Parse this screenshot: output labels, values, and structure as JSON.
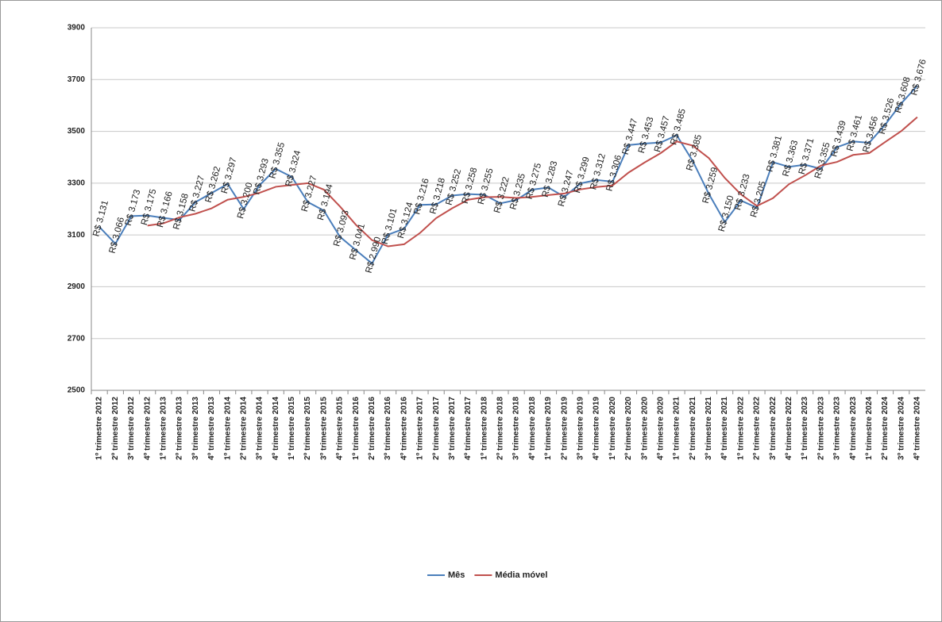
{
  "chart_data": {
    "type": "line",
    "categories": [
      "1º trimestre 2012",
      "2º trimestre 2012",
      "3º trimestre 2012",
      "4º trimestre 2012",
      "1º trimestre 2013",
      "2º trimestre 2013",
      "3º trimestre 2013",
      "4º trimestre 2013",
      "1º trimestre 2014",
      "2º trimestre 2014",
      "3º trimestre 2014",
      "4º trimestre 2014",
      "1º trimestre 2015",
      "2º trimestre 2015",
      "3º trimestre 2015",
      "4º trimestre 2015",
      "1º trimestre 2016",
      "2º trimestre 2016",
      "3º trimestre 2016",
      "4º trimestre 2016",
      "1º trimestre 2017",
      "2º trimestre 2017",
      "3º trimestre 2017",
      "4º trimestre 2017",
      "1º trimestre 2018",
      "2º trimestre 2018",
      "3º trimestre 2018",
      "4º trimestre 2018",
      "1º trimestre 2019",
      "2º trimestre 2019",
      "3º trimestre 2019",
      "4º trimestre 2019",
      "1º trimestre 2020",
      "2º trimestre 2020",
      "3º trimestre 2020",
      "4º trimestre 2020",
      "1º trimestre 2021",
      "2º trimestre 2021",
      "3º trimestre 2021",
      "4º trimestre 2021",
      "1º trimestre 2022",
      "2º trimestre 2022",
      "3º trimestre 2022",
      "4º trimestre 2022",
      "1º trimestre 2023",
      "2º trimestre 2023",
      "3º trimestre 2023",
      "4º trimestre 2023",
      "1º trimestre 2024",
      "2º trimestre 2024",
      "3º trimestre 2024",
      "4º trimestre 2024"
    ],
    "series": [
      {
        "name": "Mês",
        "color": "#4a7ebb",
        "values": [
          3131,
          3066,
          3173,
          3175,
          3166,
          3158,
          3227,
          3262,
          3297,
          3200,
          3293,
          3355,
          3324,
          3227,
          3194,
          3093,
          3041,
          2990,
          3101,
          3124,
          3216,
          3218,
          3252,
          3258,
          3255,
          3222,
          3235,
          3275,
          3283,
          3247,
          3299,
          3312,
          3306,
          3447,
          3453,
          3457,
          3485,
          3385,
          3259,
          3150,
          3233,
          3205,
          3381,
          3363,
          3371,
          3355,
          3439,
          3461,
          3456,
          3526,
          3608,
          3676
        ],
        "value_labels": [
          "R$ 3.131",
          "R$ 3.066",
          "R$ 3.173",
          "R$ 3.175",
          "R$ 3.166",
          "R$ 3.158",
          "R$ 3.227",
          "R$ 3.262",
          "R$ 3.297",
          "R$ 3.200",
          "R$ 3.293",
          "R$ 3.355",
          "R$ 3.324",
          "R$ 3.227",
          "R$ 3.194",
          "R$ 3.093",
          "R$ 3.041",
          "R$ 2.990",
          "R$ 3.101",
          "R$ 3.124",
          "R$ 3.216",
          "R$ 3.218",
          "R$ 3.252",
          "R$ 3.258",
          "R$ 3.255",
          "R$ 3.222",
          "R$ 3.235",
          "R$ 3.275",
          "R$ 3.283",
          "R$ 3.247",
          "R$ 3.299",
          "R$ 3.312",
          "R$ 3.306",
          "R$ 3.447",
          "R$ 3.453",
          "R$ 3.457",
          "R$ 3.485",
          "R$ 3.385",
          "R$ 3.259",
          "R$ 3.150",
          "R$ 3.233",
          "R$ 3.205",
          "R$ 3.381",
          "R$ 3.363",
          "R$ 3.371",
          "R$ 3.355",
          "R$ 3.439",
          "R$ 3.461",
          "R$ 3.456",
          "R$ 3.526",
          "R$ 3.608",
          "R$ 3.676"
        ]
      },
      {
        "name": "Média móvel",
        "color": "#c0504d",
        "values": [
          null,
          null,
          null,
          3136,
          3145,
          3168,
          3182,
          3203,
          3236,
          3247,
          3263,
          3286,
          3293,
          3300,
          3275,
          3210,
          3139,
          3080,
          3056,
          3064,
          3108,
          3165,
          3203,
          3236,
          3246,
          3247,
          3243,
          3247,
          3254,
          3260,
          3276,
          3285,
          3291,
          3341,
          3380,
          3416,
          3461,
          3445,
          3397,
          3320,
          3257,
          3212,
          3242,
          3296,
          3330,
          3368,
          3382,
          3409,
          3416,
          3459,
          3501,
          3555
        ]
      }
    ],
    "ylim": [
      2500,
      3900
    ],
    "yticks": [
      2500,
      2700,
      2900,
      3100,
      3300,
      3500,
      3700,
      3900
    ],
    "grid": true,
    "legend": "bottom"
  }
}
